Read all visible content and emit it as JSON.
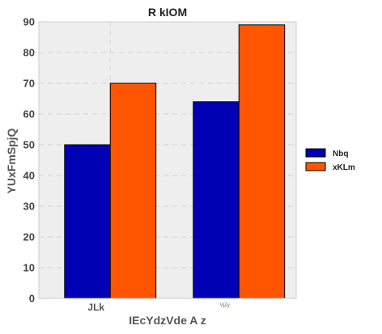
{
  "chart_data": {
    "type": "bar",
    "title": "R kIOM",
    "xlabel": "IEcYdzVde A z",
    "ylabel": "YUxFmSpjQ",
    "categories": [
      "JLk",
      "VjZy"
    ],
    "series": [
      {
        "name": "Nbq",
        "values": [
          50,
          64
        ],
        "color": "#0000b4"
      },
      {
        "name": "xKLm",
        "values": [
          70,
          89
        ],
        "color": "#ff5500"
      }
    ],
    "ylim": [
      0,
      90
    ],
    "yticks": [
      0,
      10,
      20,
      30,
      40,
      50,
      60,
      70,
      80,
      90
    ],
    "grid": true,
    "legend_position": "right",
    "plot_background": "#eeeeee"
  }
}
